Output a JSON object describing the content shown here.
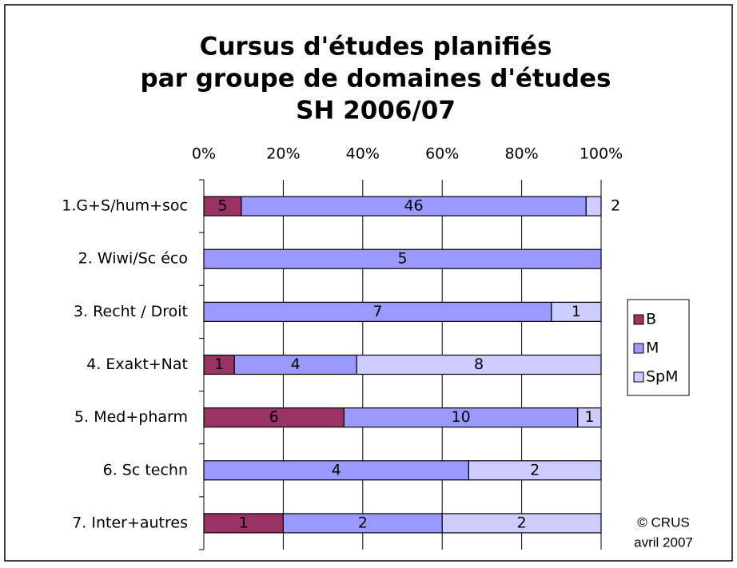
{
  "chart_data": {
    "type": "stacked_percent_barh",
    "title": [
      "Cursus d'études planifiés",
      "par groupe de domaines d'études",
      "SH 2006/07"
    ],
    "categories": [
      "1.G+S/hum+soc",
      "2. Wiwi/Sc éco",
      "3. Recht / Droit",
      "4. Exakt+Nat",
      "5. Med+pharm",
      "6. Sc techn",
      "7. Inter+autres"
    ],
    "series": [
      {
        "name": "B",
        "color": "#993366",
        "values": [
          5,
          null,
          null,
          1,
          6,
          null,
          1
        ]
      },
      {
        "name": "M",
        "color": "#9999ff",
        "values": [
          46,
          5,
          7,
          4,
          10,
          4,
          2
        ]
      },
      {
        "name": "SpM",
        "color": "#ccccff",
        "values": [
          2,
          null,
          1,
          8,
          1,
          2,
          2
        ]
      }
    ],
    "xlim": [
      0,
      100
    ],
    "xticks": [
      {
        "value": 0,
        "label": "0%"
      },
      {
        "value": 20,
        "label": "20%"
      },
      {
        "value": 40,
        "label": "40%"
      },
      {
        "value": 60,
        "label": "60%"
      },
      {
        "value": 80,
        "label": "80%"
      },
      {
        "value": 100,
        "label": "100%"
      }
    ],
    "grid": true,
    "legend": "right",
    "annotation": [
      "© CRUS",
      "avril 2007"
    ]
  }
}
